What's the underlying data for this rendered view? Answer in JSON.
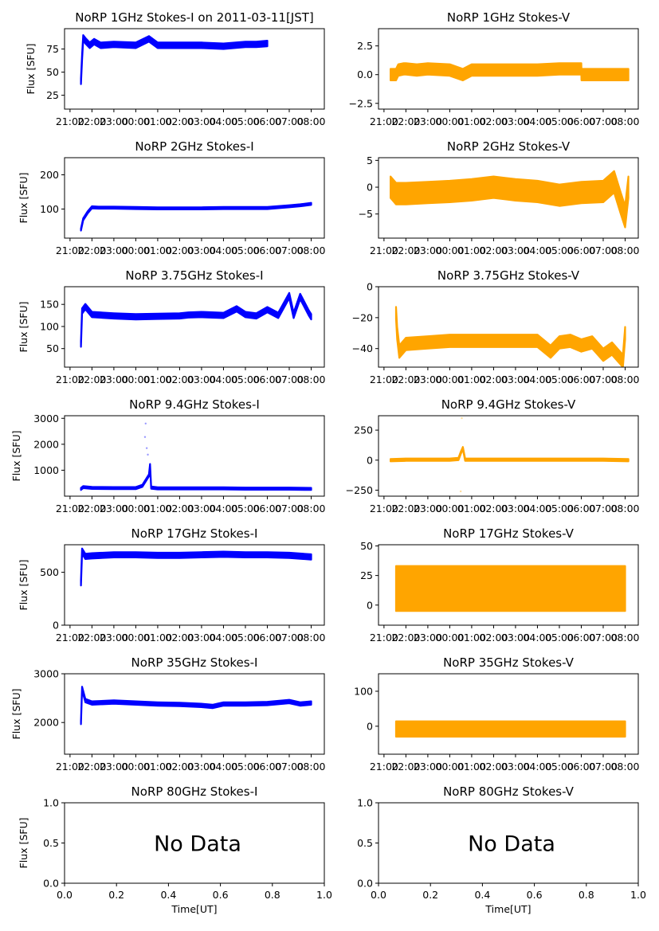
{
  "figure": {
    "title_date_suffix": " on 2011-03-11[JST]",
    "colors": {
      "stokes_i": "#0000ff",
      "stokes_v": "#ffa500",
      "axis": "#000000"
    }
  },
  "chart_data": [
    {
      "type": "scatter",
      "title": "NoRP 1GHz Stokes-I on 2011-03-11[JST]",
      "ylabel": "Flux [SFU]",
      "xlabel": "",
      "color": "#0000ff",
      "ylim": [
        10,
        97
      ],
      "yticks": [
        25,
        50,
        75
      ],
      "xticks": [
        "21:00",
        "22:00",
        "23:00",
        "00:00",
        "01:00",
        "02:00",
        "03:00",
        "04:00",
        "05:00",
        "06:00",
        "07:00",
        "08:00"
      ],
      "xlim_hours": [
        -0.25,
        11.6
      ],
      "series": [
        {
          "name": "Stokes-I",
          "x_hours": [
            0.5,
            0.55,
            0.6,
            0.7,
            0.9,
            1.1,
            1.4,
            2,
            3,
            3.6,
            4,
            5,
            6,
            7,
            8,
            8.5,
            9.0
          ],
          "y": [
            40,
            66,
            87,
            84,
            79,
            83,
            79,
            80,
            79,
            86,
            79,
            79,
            79,
            78,
            80,
            80,
            81
          ],
          "band": 3
        }
      ],
      "points": []
    },
    {
      "type": "scatter",
      "title": "NoRP 1GHz Stokes-V",
      "ylabel": "",
      "color": "#ffa500",
      "ylim": [
        -3.0,
        4.0
      ],
      "yticks": [
        2.5,
        0.0,
        -2.5
      ],
      "ytick_labels": [
        "2.5",
        "0.0",
        "−2.5"
      ],
      "xticks": [
        "21:00",
        "22:00",
        "23:00",
        "00:00",
        "01:00",
        "02:00",
        "03:00",
        "04:00",
        "05:00",
        "06:00",
        "07:00",
        "08:00"
      ],
      "xlim_hours": [
        -0.25,
        11.6
      ],
      "series": [
        {
          "name": "Stokes-V",
          "x_hours": [
            0.3,
            0.55,
            0.65,
            0.9,
            1.0,
            1.5,
            2,
            3,
            3.6,
            4,
            5,
            6,
            7,
            8,
            9.0,
            9.01,
            11.15
          ],
          "y": [
            0,
            0,
            0.4,
            0.5,
            0.5,
            0.4,
            0.5,
            0.4,
            0.0,
            0.4,
            0.4,
            0.4,
            0.4,
            0.5,
            0.5,
            0,
            0
          ],
          "band": 0.5
        }
      ],
      "points": []
    },
    {
      "type": "scatter",
      "title": "NoRP 2GHz Stokes-I",
      "ylabel": "Flux [SFU]",
      "color": "#0000ff",
      "ylim": [
        15,
        250
      ],
      "yticks": [
        100,
        200
      ],
      "xticks": [
        "21:00",
        "22:00",
        "23:00",
        "00:00",
        "01:00",
        "02:00",
        "03:00",
        "04:00",
        "05:00",
        "06:00",
        "07:00",
        "08:00"
      ],
      "xlim_hours": [
        -0.25,
        11.6
      ],
      "series": [
        {
          "name": "Stokes-I",
          "x_hours": [
            0.5,
            0.6,
            0.8,
            1.0,
            1.3,
            2,
            3,
            4,
            5,
            6,
            7,
            8,
            9,
            10,
            10.5,
            11.0
          ],
          "y": [
            40,
            70,
            90,
            105,
            104,
            104,
            103,
            102,
            102,
            102,
            103,
            103,
            103,
            108,
            111,
            115
          ],
          "band": 3
        }
      ],
      "points": []
    },
    {
      "type": "scatter",
      "title": "NoRP 2GHz Stokes-V",
      "ylabel": "",
      "color": "#ffa500",
      "ylim": [
        -9.5,
        5.5
      ],
      "yticks": [
        5,
        0,
        -5
      ],
      "ytick_labels": [
        "5",
        "0",
        "−5"
      ],
      "xticks": [
        "21:00",
        "22:00",
        "23:00",
        "00:00",
        "01:00",
        "02:00",
        "03:00",
        "04:00",
        "05:00",
        "06:00",
        "07:00",
        "08:00"
      ],
      "xlim_hours": [
        -0.25,
        11.6
      ],
      "series": [
        {
          "name": "Stokes-V",
          "x_hours": [
            0.3,
            0.55,
            1,
            2,
            3,
            4,
            5,
            6,
            7,
            8,
            9,
            10,
            10.5,
            10.8,
            11.0,
            11.15
          ],
          "y": [
            0,
            -1.2,
            -1.2,
            -1.0,
            -0.8,
            -0.5,
            0,
            -0.5,
            -0.8,
            -1.5,
            -1.0,
            -0.8,
            1.0,
            -3,
            -5.5,
            0
          ],
          "band": 2
        }
      ],
      "points": []
    },
    {
      "type": "scatter",
      "title": "NoRP 3.75GHz Stokes-I",
      "ylabel": "Flux [SFU]",
      "color": "#0000ff",
      "ylim": [
        8,
        190
      ],
      "yticks": [
        50,
        100,
        150
      ],
      "xticks": [
        "21:00",
        "22:00",
        "23:00",
        "00:00",
        "01:00",
        "02:00",
        "03:00",
        "04:00",
        "05:00",
        "06:00",
        "07:00",
        "08:00"
      ],
      "xlim_hours": [
        -0.25,
        11.6
      ],
      "series": [
        {
          "name": "Stokes-I",
          "x_hours": [
            0.5,
            0.55,
            0.7,
            1.0,
            2,
            3,
            4,
            5,
            5.4,
            6,
            7,
            7.6,
            8,
            8.5,
            9,
            9.5,
            10,
            10.2,
            10.5,
            10.9,
            11.0
          ],
          "y": [
            60,
            135,
            145,
            127,
            124,
            122,
            123,
            124,
            126,
            127,
            125,
            140,
            127,
            124,
            138,
            125,
            170,
            125,
            168,
            130,
            122
          ],
          "band": 6
        }
      ],
      "points": []
    },
    {
      "type": "scatter",
      "title": "NoRP 3.75GHz Stokes-V",
      "ylabel": "",
      "color": "#ffa500",
      "ylim": [
        -52,
        0
      ],
      "yticks": [
        0,
        -20,
        -40
      ],
      "ytick_labels": [
        "0",
        "−20",
        "−40"
      ],
      "xticks": [
        "21:00",
        "22:00",
        "23:00",
        "00:00",
        "01:00",
        "02:00",
        "03:00",
        "04:00",
        "05:00",
        "06:00",
        "07:00",
        "08:00"
      ],
      "xlim_hours": [
        -0.25,
        11.6
      ],
      "series": [
        {
          "name": "Stokes-V",
          "x_hours": [
            0.55,
            0.6,
            0.7,
            1,
            2,
            3,
            4,
            5,
            6,
            7,
            7.6,
            8,
            8.5,
            9,
            9.5,
            10,
            10.4,
            10.9,
            11.0
          ],
          "y": [
            -17,
            -30,
            -42,
            -37,
            -36,
            -35,
            -35,
            -35,
            -35,
            -35,
            -42,
            -36,
            -35,
            -38,
            -36,
            -44,
            -40,
            -48,
            -30
          ],
          "band": 4
        }
      ],
      "points": []
    },
    {
      "type": "scatter",
      "title": "NoRP 9.4GHz Stokes-I",
      "ylabel": "Flux [SFU]",
      "color": "#0000ff",
      "ylim": [
        0,
        3100
      ],
      "yticks": [
        1000,
        2000,
        3000
      ],
      "xticks": [
        "21:00",
        "22:00",
        "23:00",
        "00:00",
        "01:00",
        "02:00",
        "03:00",
        "04:00",
        "05:00",
        "06:00",
        "07:00",
        "08:00"
      ],
      "xlim_hours": [
        -0.25,
        11.6
      ],
      "series": [
        {
          "name": "Stokes-I",
          "x_hours": [
            0.5,
            0.6,
            1,
            2,
            3,
            3.3,
            3.6,
            3.65,
            3.7,
            4,
            5,
            6,
            7,
            8,
            9,
            10,
            11.0
          ],
          "y": [
            280,
            350,
            320,
            310,
            310,
            400,
            800,
            1200,
            330,
            300,
            300,
            300,
            300,
            290,
            290,
            290,
            280
          ],
          "band": 40
        }
      ],
      "points": [
        {
          "x_hours": 3.45,
          "y": 2800
        },
        {
          "x_hours": 3.42,
          "y": 2280
        },
        {
          "x_hours": 3.5,
          "y": 1850
        },
        {
          "x_hours": 3.55,
          "y": 1600
        }
      ]
    },
    {
      "type": "scatter",
      "title": "NoRP 9.4GHz Stokes-V",
      "ylabel": "",
      "color": "#ffa500",
      "ylim": [
        -300,
        370
      ],
      "yticks": [
        250,
        0,
        -250
      ],
      "ytick_labels": [
        "250",
        "0",
        "−250"
      ],
      "xticks": [
        "21:00",
        "22:00",
        "23:00",
        "00:00",
        "01:00",
        "02:00",
        "03:00",
        "04:00",
        "05:00",
        "06:00",
        "07:00",
        "08:00"
      ],
      "xlim_hours": [
        -0.25,
        11.6
      ],
      "series": [
        {
          "name": "Stokes-V",
          "x_hours": [
            0.3,
            1,
            2,
            3,
            3.4,
            3.5,
            3.6,
            3.7,
            4,
            5,
            6,
            7,
            8,
            9,
            10,
            11.15
          ],
          "y": [
            0,
            4,
            4,
            4,
            10,
            60,
            100,
            4,
            4,
            4,
            4,
            4,
            4,
            4,
            4,
            0
          ],
          "band": 10
        }
      ],
      "points": [
        {
          "x_hours": 3.55,
          "y": 350
        },
        {
          "x_hours": 3.5,
          "y": -260
        }
      ]
    },
    {
      "type": "scatter",
      "title": "NoRP 17GHz Stokes-I",
      "ylabel": "Flux [SFU]",
      "color": "#0000ff",
      "ylim": [
        0,
        760
      ],
      "yticks": [
        0,
        500
      ],
      "xticks": [
        "21:00",
        "22:00",
        "23:00",
        "00:00",
        "01:00",
        "02:00",
        "03:00",
        "04:00",
        "05:00",
        "06:00",
        "07:00",
        "08:00"
      ],
      "xlim_hours": [
        -0.25,
        11.6
      ],
      "series": [
        {
          "name": "Stokes-I",
          "x_hours": [
            0.5,
            0.55,
            0.7,
            1,
            2,
            3,
            4,
            5,
            6,
            7,
            8,
            9,
            10,
            11.0
          ],
          "y": [
            400,
            700,
            650,
            655,
            665,
            665,
            660,
            660,
            665,
            670,
            665,
            665,
            660,
            645
          ],
          "band": 25
        }
      ],
      "points": []
    },
    {
      "type": "scatter",
      "title": "NoRP 17GHz Stokes-V",
      "ylabel": "",
      "color": "#ffa500",
      "ylim": [
        -17,
        51
      ],
      "yticks": [
        50,
        25,
        0
      ],
      "ytick_labels": [
        "50",
        "25",
        "0"
      ],
      "xticks": [
        "21:00",
        "22:00",
        "23:00",
        "00:00",
        "01:00",
        "02:00",
        "03:00",
        "04:00",
        "05:00",
        "06:00",
        "07:00",
        "08:00"
      ],
      "xlim_hours": [
        -0.25,
        11.6
      ],
      "series": [
        {
          "name": "Stokes-V",
          "x_hours": [
            0.55,
            2,
            4,
            6,
            8,
            10,
            11.0
          ],
          "y": [
            14,
            14,
            14,
            14,
            14,
            14,
            14
          ],
          "band": 19
        }
      ],
      "points": []
    },
    {
      "type": "scatter",
      "title": "NoRP 35GHz Stokes-I",
      "ylabel": "Flux [SFU]",
      "color": "#0000ff",
      "ylim": [
        1350,
        3000
      ],
      "yticks": [
        2000,
        3000
      ],
      "xticks": [
        "21:00",
        "22:00",
        "23:00",
        "00:00",
        "01:00",
        "02:00",
        "03:00",
        "04:00",
        "05:00",
        "06:00",
        "07:00",
        "08:00"
      ],
      "xlim_hours": [
        -0.25,
        11.6
      ],
      "series": [
        {
          "name": "Stokes-I",
          "x_hours": [
            0.5,
            0.55,
            0.7,
            1,
            2,
            3,
            4,
            5,
            6,
            6.5,
            7,
            8,
            9,
            10,
            10.5,
            11.0
          ],
          "y": [
            2000,
            2700,
            2450,
            2400,
            2420,
            2400,
            2380,
            2370,
            2350,
            2330,
            2380,
            2380,
            2390,
            2430,
            2380,
            2400
          ],
          "band": 35
        }
      ],
      "points": []
    },
    {
      "type": "scatter",
      "title": "NoRP 35GHz Stokes-V",
      "ylabel": "",
      "color": "#ffa500",
      "ylim": [
        -80,
        150
      ],
      "yticks": [
        100,
        0
      ],
      "ytick_labels": [
        "100",
        "0"
      ],
      "xticks": [
        "21:00",
        "22:00",
        "23:00",
        "00:00",
        "01:00",
        "02:00",
        "03:00",
        "04:00",
        "05:00",
        "06:00",
        "07:00",
        "08:00"
      ],
      "xlim_hours": [
        -0.25,
        11.6
      ],
      "series": [
        {
          "name": "Stokes-V",
          "x_hours": [
            0.55,
            11.0
          ],
          "y": [
            -8,
            -8
          ],
          "band": 22
        }
      ],
      "points": []
    },
    {
      "type": "scatter",
      "title": "NoRP 80GHz Stokes-I",
      "ylabel": "Flux [SFU]",
      "xlabel": "Time[UT]",
      "annotation": "No Data",
      "ylim": [
        0,
        1
      ],
      "xlim": [
        0,
        1
      ],
      "yticks": [
        0.0,
        0.5,
        1.0
      ],
      "ytick_labels": [
        "0.0",
        "0.5",
        "1.0"
      ],
      "xticks_num": [
        0.0,
        0.2,
        0.4,
        0.6,
        0.8,
        1.0
      ],
      "xtick_labels": [
        "0.0",
        "0.2",
        "0.4",
        "0.6",
        "0.8",
        "1.0"
      ],
      "series": []
    },
    {
      "type": "scatter",
      "title": "NoRP 80GHz Stokes-V",
      "ylabel": "",
      "xlabel": "Time[UT]",
      "annotation": "No Data",
      "ylim": [
        0,
        1
      ],
      "xlim": [
        0,
        1
      ],
      "yticks": [
        0.0,
        0.5,
        1.0
      ],
      "ytick_labels": [
        "0.0",
        "0.5",
        "1.0"
      ],
      "xticks_num": [
        0.0,
        0.2,
        0.4,
        0.6,
        0.8,
        1.0
      ],
      "xtick_labels": [
        "0.0",
        "0.2",
        "0.4",
        "0.6",
        "0.8",
        "1.0"
      ],
      "series": []
    }
  ]
}
